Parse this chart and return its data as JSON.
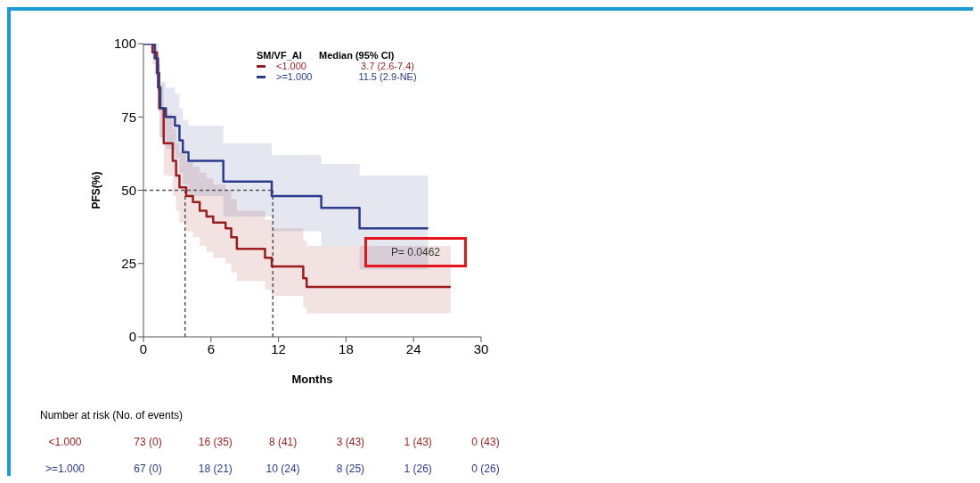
{
  "chart_data": {
    "type": "step",
    "xlabel": "Months",
    "ylabel": "PFS(%)",
    "legend_title": "SM/VF_AI",
    "legend": "top",
    "grid": false,
    "marker": "none",
    "line_style": "solid",
    "xlim": [
      0,
      30
    ],
    "xticks": [
      0,
      6,
      12,
      18,
      24,
      30
    ],
    "ylim": [
      0,
      100
    ],
    "yticks": [
      0,
      25,
      50,
      75,
      100
    ],
    "series": [
      {
        "name": "<1.000",
        "color": "#9b1c1c",
        "x": [
          0,
          0.8,
          1.2,
          1.4,
          1.8,
          2.6,
          2.9,
          3.2,
          3.8,
          4.4,
          5.0,
          5.6,
          6.2,
          7.3,
          7.8,
          8.3,
          10.8,
          11.4,
          14.2,
          14.5,
          27.3
        ],
        "values": [
          100,
          97,
          90,
          78,
          66,
          60,
          55,
          51,
          48,
          46,
          43,
          41,
          39,
          37,
          34,
          30,
          27,
          24,
          20,
          17,
          17
        ],
        "lower": [
          100,
          93,
          84,
          68,
          55,
          48,
          43,
          39,
          36,
          34,
          31,
          29,
          27,
          25,
          22,
          19,
          16,
          14,
          10,
          8,
          8
        ],
        "upper": [
          100,
          100,
          96,
          86,
          76,
          71,
          66,
          63,
          60,
          58,
          56,
          54,
          52,
          50,
          47,
          43,
          40,
          37,
          33,
          31,
          31
        ]
      },
      {
        "name": ">=1.000",
        "color": "#2b3a8c",
        "x": [
          0,
          1.0,
          1.3,
          1.5,
          2.0,
          2.8,
          3.2,
          3.5,
          4.0,
          7.1,
          11.4,
          15.8,
          19.2,
          25.3
        ],
        "values": [
          100,
          95,
          85,
          78,
          75,
          72,
          67,
          63,
          60,
          53,
          48,
          44,
          37,
          37
        ],
        "lower": [
          100,
          89,
          77,
          68,
          64,
          61,
          56,
          52,
          48,
          41,
          36,
          31,
          23,
          23
        ],
        "upper": [
          100,
          100,
          93,
          87,
          85,
          83,
          78,
          74,
          72,
          66,
          62,
          59,
          55,
          55
        ]
      }
    ],
    "ref_lines": [
      {
        "axis": "y",
        "value": 50,
        "line_style": "dashed",
        "color": "#555555"
      },
      {
        "axis": "x",
        "value": 3.7,
        "line_style": "dashed",
        "color": "#555555"
      },
      {
        "axis": "x",
        "value": 11.5,
        "line_style": "dashed",
        "color": "#555555"
      }
    ],
    "annotations": [
      "Median (95% CI)",
      "3.7 (2.6-7.4)",
      "11.5 (2.9-NE)",
      "P= 0.0462",
      "Number at risk (No. of events)",
      "73 (0)",
      "16 (35)",
      "8 (41)",
      "3 (43)",
      "1 (43)",
      "0 (43)",
      "67 (0)",
      "18 (21)",
      "10 (24)",
      "8 (25)",
      "1 (26)",
      "0 (26)"
    ]
  }
}
